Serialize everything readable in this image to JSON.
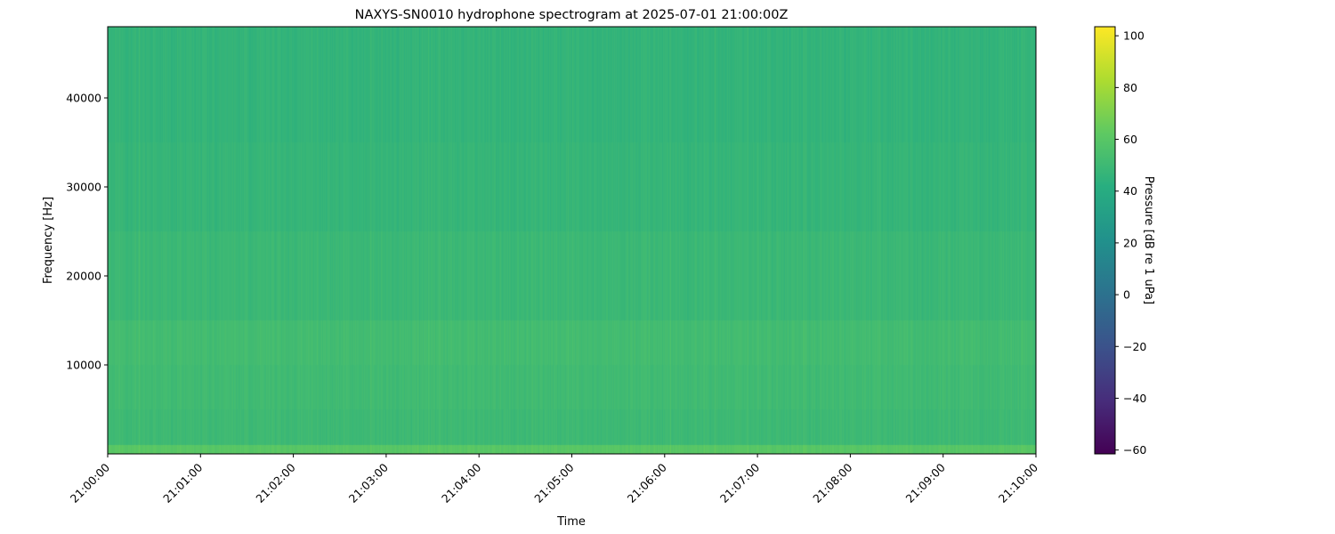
{
  "chart_data": {
    "type": "heatmap",
    "title": "NAXYS-SN0010 hydrophone spectrogram at 2025-07-01 21:00:00Z",
    "xlabel": "Time",
    "ylabel": "Frequency [Hz]",
    "x_ticks": [
      "21:00:00",
      "21:01:00",
      "21:02:00",
      "21:03:00",
      "21:04:00",
      "21:05:00",
      "21:06:00",
      "21:07:00",
      "21:08:00",
      "21:09:00",
      "21:10:00"
    ],
    "xlim": [
      "21:00:00",
      "21:10:00"
    ],
    "y_ticks": [
      10000,
      20000,
      30000,
      40000
    ],
    "ylim": [
      0,
      48000
    ],
    "colormap": "viridis",
    "colorbar": {
      "label": "Pressure [dB re 1 uPa]",
      "ticks": [
        100,
        80,
        60,
        40,
        20,
        0,
        -20,
        -40,
        -60
      ],
      "range": [
        -61.5,
        103.5
      ]
    },
    "approx_level_by_frequency": [
      {
        "freq_from": 0,
        "freq_to": 1000,
        "db": 60
      },
      {
        "freq_from": 1000,
        "freq_to": 5000,
        "db": 50
      },
      {
        "freq_from": 5000,
        "freq_to": 10000,
        "db": 51
      },
      {
        "freq_from": 10000,
        "freq_to": 15000,
        "db": 52
      },
      {
        "freq_from": 15000,
        "freq_to": 25000,
        "db": 49
      },
      {
        "freq_from": 25000,
        "freq_to": 35000,
        "db": 47
      },
      {
        "freq_from": 35000,
        "freq_to": 48000,
        "db": 46
      }
    ]
  }
}
